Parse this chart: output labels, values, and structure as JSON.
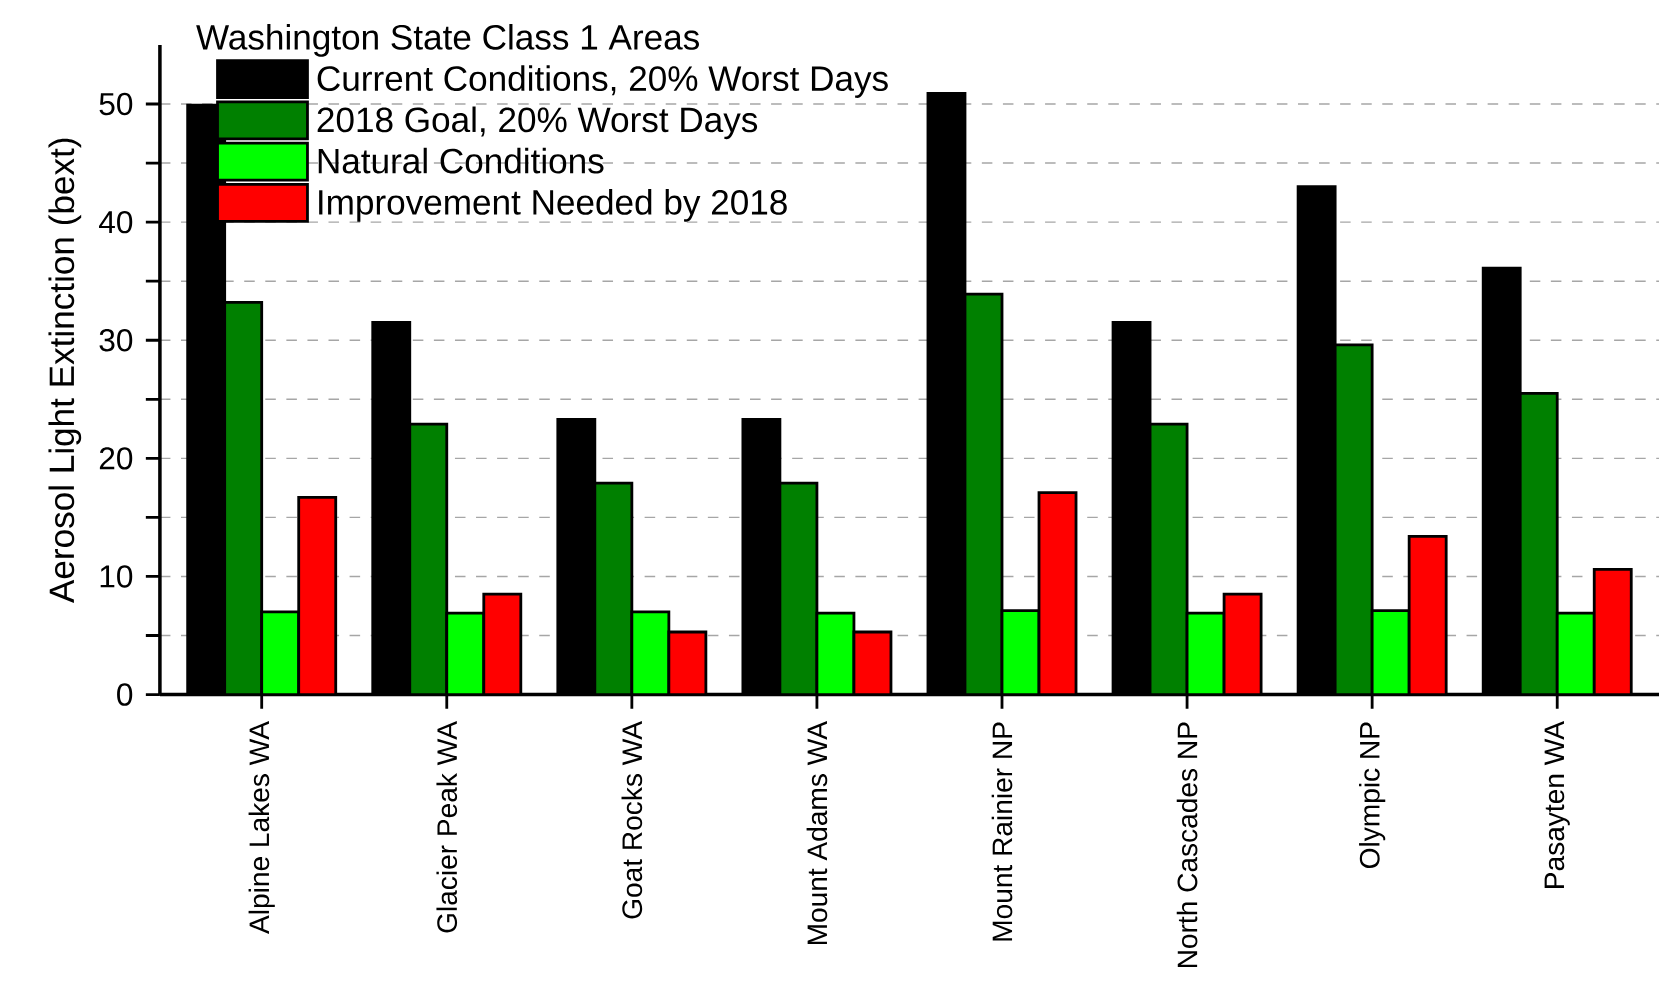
{
  "chart_data": {
    "type": "bar",
    "legend_title": "Washington State Class 1 Areas",
    "ylabel": "Aerosol Light Extinction (bext)",
    "categories": [
      "Alpine Lakes WA",
      "Glacier Peak WA",
      "Goat Rocks WA",
      "Mount Adams WA",
      "Mount Rainier NP",
      "North Cascades NP",
      "Olympic NP",
      "Pasayten WA"
    ],
    "series": [
      {
        "name": "Current Conditions, 20% Worst Days",
        "color": "#000000",
        "values": [
          49.9,
          31.5,
          23.3,
          23.3,
          50.9,
          31.5,
          43.0,
          36.1
        ]
      },
      {
        "name": "2018 Goal, 20% Worst Days",
        "color": "#008000",
        "values": [
          33.2,
          22.9,
          17.9,
          17.9,
          33.9,
          22.9,
          29.6,
          25.5
        ]
      },
      {
        "name": "Natural Conditions",
        "color": "#00ff00",
        "values": [
          7.0,
          6.9,
          7.0,
          6.9,
          7.1,
          6.9,
          7.1,
          6.9
        ]
      },
      {
        "name": "Improvement Needed by 2018",
        "color": "#ff0000",
        "values": [
          16.7,
          8.5,
          5.3,
          5.3,
          17.1,
          8.5,
          13.4,
          10.6
        ]
      }
    ],
    "ylim": [
      0,
      55
    ],
    "yticks": [
      0,
      {
        "value": 5,
        "label": null
      },
      10,
      {
        "value": 15,
        "label": null
      },
      20,
      {
        "value": 25,
        "label": null
      },
      30,
      {
        "value": 35,
        "label": null
      },
      40,
      {
        "value": 45,
        "label": null
      },
      50
    ],
    "grid": "y",
    "legend": "top left"
  }
}
